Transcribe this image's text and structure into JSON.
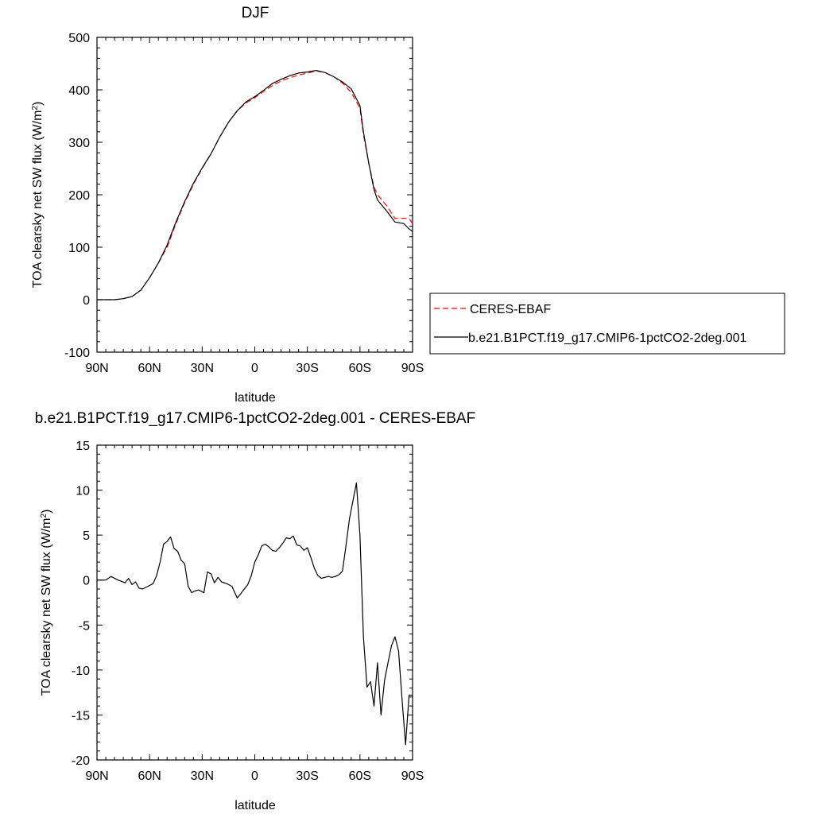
{
  "chart_data": [
    {
      "type": "line",
      "title": "DJF",
      "xlabel": "latitude",
      "ylabel_main": "TOA clearsky net SW flux (W/m",
      "ylabel_sup": "2",
      "ylabel_close": ")",
      "xlim": [
        90,
        -90
      ],
      "ylim": [
        -100,
        500
      ],
      "x_ticks": [
        90,
        60,
        30,
        0,
        -30,
        -60,
        -90
      ],
      "x_tick_labels": [
        "90N",
        "60N",
        "30N",
        "0",
        "30S",
        "60S",
        "90S"
      ],
      "y_ticks": [
        -100,
        0,
        100,
        200,
        300,
        400,
        500
      ],
      "y_tick_labels": [
        "-100",
        "0",
        "100",
        "200",
        "300",
        "400",
        "500"
      ],
      "legend_position": "outside-right",
      "series": [
        {
          "name": "CERES-EBAF",
          "color": "#ff0000",
          "dash": "dashed",
          "x": [
            90,
            85,
            80,
            75,
            70,
            65,
            60,
            55,
            50,
            45,
            40,
            35,
            30,
            25,
            20,
            15,
            10,
            5,
            0,
            -5,
            -10,
            -15,
            -20,
            -25,
            -30,
            -35,
            -40,
            -45,
            -50,
            -55,
            -60,
            -62,
            -65,
            -68,
            -70,
            -75,
            -80,
            -85,
            -88,
            -90
          ],
          "y": [
            0,
            0,
            0,
            2,
            6,
            18,
            42,
            70,
            100,
            145,
            185,
            220,
            250,
            278,
            310,
            338,
            360,
            375,
            385,
            397,
            408,
            417,
            423,
            428,
            432,
            436,
            433,
            425,
            413,
            395,
            365,
            315,
            260,
            215,
            200,
            180,
            155,
            155,
            155,
            145
          ]
        },
        {
          "name": "b.e21.B1PCT.f19_g17.CMIP6-1pctCO2-2deg.001",
          "color": "#000000",
          "dash": "solid",
          "x": [
            90,
            85,
            80,
            75,
            70,
            65,
            60,
            55,
            50,
            45,
            40,
            35,
            30,
            25,
            20,
            15,
            10,
            5,
            0,
            -5,
            -10,
            -15,
            -20,
            -25,
            -30,
            -35,
            -40,
            -45,
            -50,
            -55,
            -60,
            -62,
            -65,
            -68,
            -70,
            -75,
            -80,
            -85,
            -88,
            -90
          ],
          "y": [
            0,
            0,
            0,
            2,
            6,
            18,
            42,
            70,
            104,
            148,
            187,
            222,
            251,
            278,
            310,
            338,
            360,
            377,
            387,
            399,
            412,
            420,
            427,
            432,
            434,
            437,
            433,
            425,
            415,
            402,
            370,
            320,
            260,
            210,
            190,
            170,
            148,
            145,
            135,
            130
          ]
        }
      ]
    },
    {
      "type": "line",
      "title": "b.e21.B1PCT.f19_g17.CMIP6-1pctCO2-2deg.001 - CERES-EBAF",
      "xlabel": "latitude",
      "ylabel_main": "TOA clearsky net SW flux (W/m",
      "ylabel_sup": "2",
      "ylabel_close": ")",
      "xlim": [
        90,
        -90
      ],
      "ylim": [
        -20,
        15
      ],
      "x_ticks": [
        90,
        60,
        30,
        0,
        -30,
        -60,
        -90
      ],
      "x_tick_labels": [
        "90N",
        "60N",
        "30N",
        "0",
        "30S",
        "60S",
        "90S"
      ],
      "y_ticks": [
        -20,
        -15,
        -10,
        -5,
        0,
        5,
        10,
        15
      ],
      "y_tick_labels": [
        "-20",
        "-15",
        "-10",
        "-5",
        "0",
        "5",
        "10",
        "15"
      ],
      "series": [
        {
          "color": "#000000",
          "dash": "solid",
          "x": [
            90,
            85,
            82,
            78,
            74,
            72,
            70,
            68,
            66,
            64,
            60,
            58,
            56,
            54,
            52,
            50,
            48,
            46,
            44,
            42,
            40,
            38,
            36,
            34,
            32,
            29,
            27,
            25,
            23,
            21,
            19,
            16,
            13,
            10,
            8,
            6,
            4,
            2,
            0,
            -2,
            -4,
            -6,
            -8,
            -10,
            -12,
            -14,
            -16,
            -18,
            -20,
            -22,
            -24,
            -26,
            -28,
            -30,
            -32,
            -34,
            -36,
            -38,
            -40,
            -42,
            -44,
            -46,
            -48,
            -50,
            -52,
            -54,
            -56,
            -58,
            -60,
            -62,
            -64,
            -66,
            -68,
            -70,
            -72,
            -74,
            -76,
            -78,
            -80,
            -82,
            -84,
            -86,
            -88,
            -90
          ],
          "y": [
            0,
            0,
            0.4,
            0,
            -0.3,
            0.2,
            -0.5,
            -0.2,
            -0.9,
            -1,
            -0.6,
            -0.4,
            0.5,
            2,
            4,
            4.3,
            4.8,
            3.5,
            3.2,
            2.2,
            1.8,
            -0.7,
            -1.4,
            -1.2,
            -1.1,
            -1.4,
            0.9,
            0.7,
            -0.3,
            0.3,
            -0.2,
            -0.4,
            -0.7,
            -2,
            -1.5,
            -1,
            -0.5,
            0.5,
            2,
            2.8,
            3.8,
            4,
            3.7,
            3.3,
            3.2,
            3.6,
            4.1,
            4.7,
            4.6,
            4.9,
            3.9,
            3.8,
            3.3,
            3.6,
            2.5,
            1.3,
            0.5,
            0.2,
            0.3,
            0.4,
            0.3,
            0.4,
            0.6,
            1,
            3.8,
            6.8,
            8.8,
            10.8,
            5,
            -6.3,
            -11.9,
            -11.3,
            -14,
            -9.2,
            -15,
            -11.2,
            -9.2,
            -7.3,
            -6.3,
            -7.9,
            -13.3,
            -18.3,
            -12.8,
            -12.8
          ]
        }
      ]
    }
  ]
}
